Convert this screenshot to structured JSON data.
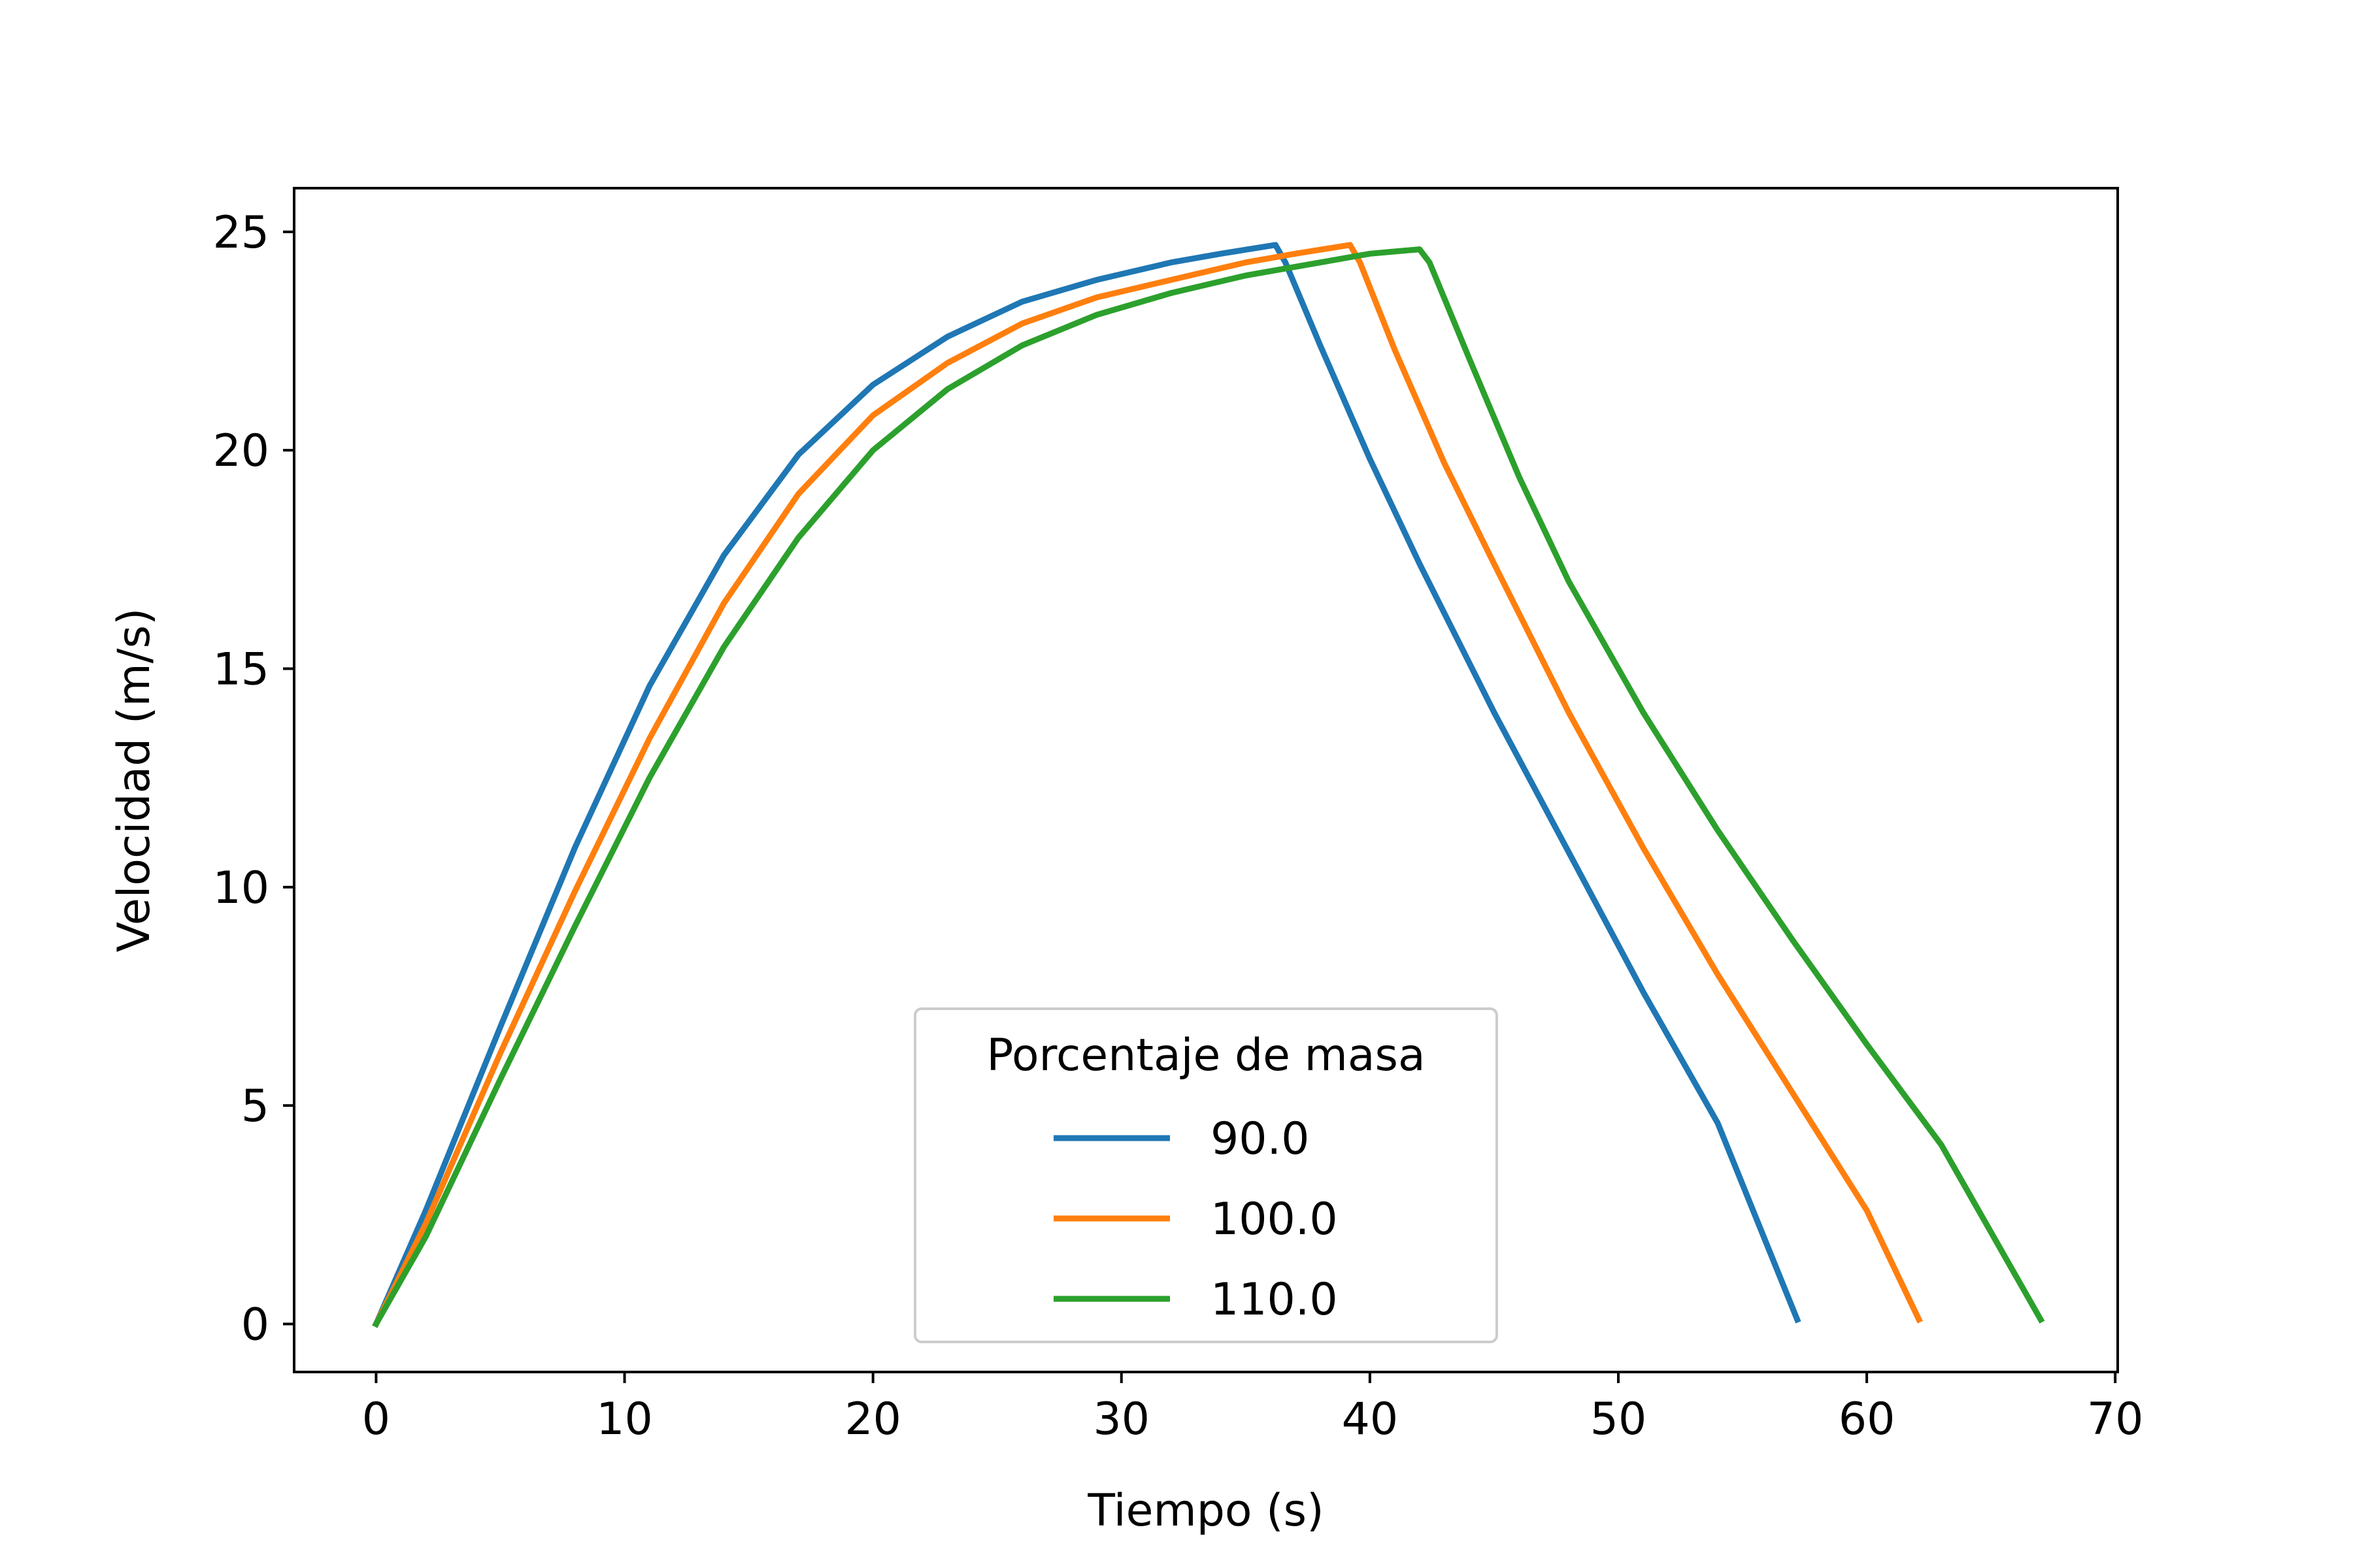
{
  "chart_data": {
    "type": "line",
    "xlabel": "Tiempo (s)",
    "ylabel": "Velocidad (m/s)",
    "xlim": [
      -3.3,
      70.1
    ],
    "ylim": [
      -1.1,
      26.0
    ],
    "xticks": [
      0,
      10,
      20,
      30,
      40,
      50,
      60,
      70
    ],
    "yticks": [
      0,
      5,
      10,
      15,
      20,
      25
    ],
    "grid": false,
    "legend": {
      "title": "Porcentaje de masa",
      "position": "lower-center"
    },
    "series": [
      {
        "name": "90.0",
        "color": "#1f77b4",
        "points": [
          [
            0,
            0.0
          ],
          [
            2,
            2.6
          ],
          [
            5,
            6.8
          ],
          [
            8,
            10.9
          ],
          [
            11,
            14.6
          ],
          [
            14,
            17.6
          ],
          [
            17,
            19.9
          ],
          [
            20,
            21.5
          ],
          [
            23,
            22.6
          ],
          [
            26,
            23.4
          ],
          [
            29,
            23.9
          ],
          [
            32,
            24.3
          ],
          [
            34,
            24.5
          ],
          [
            36.2,
            24.7
          ],
          [
            36.6,
            24.3
          ],
          [
            38,
            22.4
          ],
          [
            40,
            19.8
          ],
          [
            42,
            17.4
          ],
          [
            45,
            14.0
          ],
          [
            48,
            10.8
          ],
          [
            51,
            7.6
          ],
          [
            54,
            4.6
          ],
          [
            57.2,
            0.1
          ]
        ]
      },
      {
        "name": "100.0",
        "color": "#ff7f0e",
        "points": [
          [
            0,
            0.0
          ],
          [
            2,
            2.3
          ],
          [
            5,
            6.2
          ],
          [
            8,
            9.9
          ],
          [
            11,
            13.4
          ],
          [
            14,
            16.5
          ],
          [
            17,
            19.0
          ],
          [
            20,
            20.8
          ],
          [
            23,
            22.0
          ],
          [
            26,
            22.9
          ],
          [
            29,
            23.5
          ],
          [
            32,
            23.9
          ],
          [
            35,
            24.3
          ],
          [
            37,
            24.5
          ],
          [
            39.2,
            24.7
          ],
          [
            39.6,
            24.3
          ],
          [
            41,
            22.3
          ],
          [
            43,
            19.7
          ],
          [
            45,
            17.4
          ],
          [
            48,
            14.0
          ],
          [
            51,
            10.9
          ],
          [
            54,
            8.0
          ],
          [
            57,
            5.3
          ],
          [
            60,
            2.6
          ],
          [
            62.1,
            0.1
          ]
        ]
      },
      {
        "name": "110.0",
        "color": "#2ca02c",
        "points": [
          [
            0,
            0.0
          ],
          [
            2,
            2.0
          ],
          [
            5,
            5.6
          ],
          [
            8,
            9.1
          ],
          [
            11,
            12.5
          ],
          [
            14,
            15.5
          ],
          [
            17,
            18.0
          ],
          [
            20,
            20.0
          ],
          [
            23,
            21.4
          ],
          [
            26,
            22.4
          ],
          [
            29,
            23.1
          ],
          [
            32,
            23.6
          ],
          [
            35,
            24.0
          ],
          [
            38,
            24.3
          ],
          [
            40,
            24.5
          ],
          [
            42.0,
            24.6
          ],
          [
            42.4,
            24.3
          ],
          [
            44,
            22.1
          ],
          [
            46,
            19.4
          ],
          [
            48,
            17.0
          ],
          [
            51,
            14.0
          ],
          [
            54,
            11.3
          ],
          [
            57,
            8.8
          ],
          [
            60,
            6.4
          ],
          [
            63,
            4.1
          ],
          [
            67.0,
            0.1
          ]
        ]
      }
    ]
  }
}
